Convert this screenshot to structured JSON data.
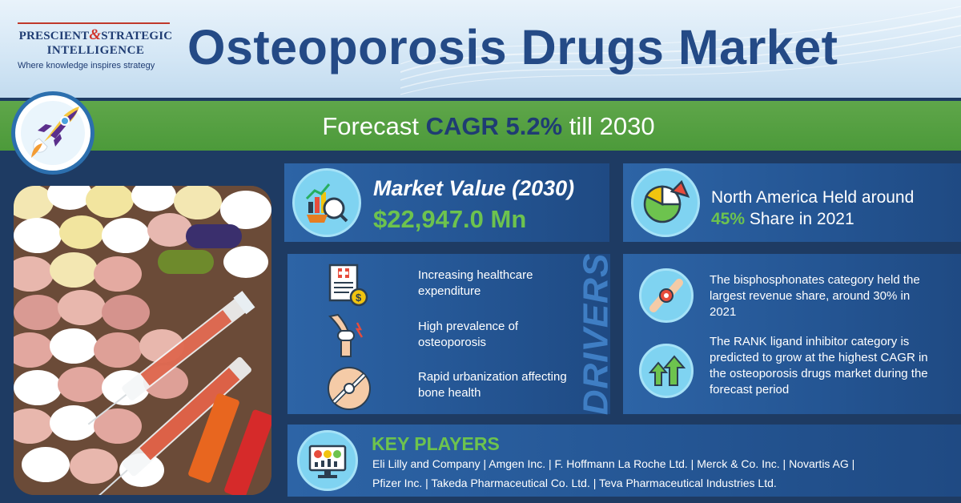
{
  "brand": {
    "name_part1": "PRESCIENT",
    "ampersand": "&",
    "name_part2": "STRATEGIC",
    "name_line2": "INTELLIGENCE",
    "tagline": "Where knowledge inspires strategy"
  },
  "title": "Osteoporosis Drugs Market",
  "forecast": {
    "prefix": "Forecast ",
    "cagr": "CAGR 5.2%",
    "suffix": " till 2030"
  },
  "market_value": {
    "label": "Market Value (2030)",
    "value": "$22,947.0 Mn",
    "icon": "market-analysis-icon"
  },
  "region": {
    "line1": "North America Held around",
    "percent": "45%",
    "line2_suffix": " Share in 2021",
    "icon": "pie-chart-icon"
  },
  "drivers": {
    "heading": "DRIVERS",
    "items": [
      {
        "text": "Increasing healthcare expenditure",
        "icon": "medical-bill-icon"
      },
      {
        "text": "High prevalence of osteoporosis",
        "icon": "knee-joint-icon"
      },
      {
        "text": "Rapid urbanization affecting bone health",
        "icon": "bone-joint-icon"
      }
    ]
  },
  "segments": [
    {
      "text": "The bisphosphonates category held the largest revenue share, around 30% in 2021",
      "icon": "joint-icon"
    },
    {
      "text": "The RANK ligand inhibitor category is predicted to grow at the highest CAGR in the osteoporosis drugs market during the forecast period",
      "icon": "growth-arrows-icon"
    }
  ],
  "key_players": {
    "heading": "KEY PLAYERS",
    "line1": "Eli Lilly and Company | Amgen Inc. | F. Hoffmann La Roche Ltd. | Merck & Co. Inc. | Novartis AG |",
    "line2": "Pfizer Inc. | Takeda Pharmaceutical Co. Ltd. | Teva Pharmaceutical Industries Ltd.",
    "icon": "dashboard-icon"
  },
  "colors": {
    "navy": "#1e3b63",
    "panel_blue": "#2d64a6",
    "accent_green": "#6dc34e",
    "title_blue": "#244a86",
    "icon_circle": "#7fd3f1"
  }
}
